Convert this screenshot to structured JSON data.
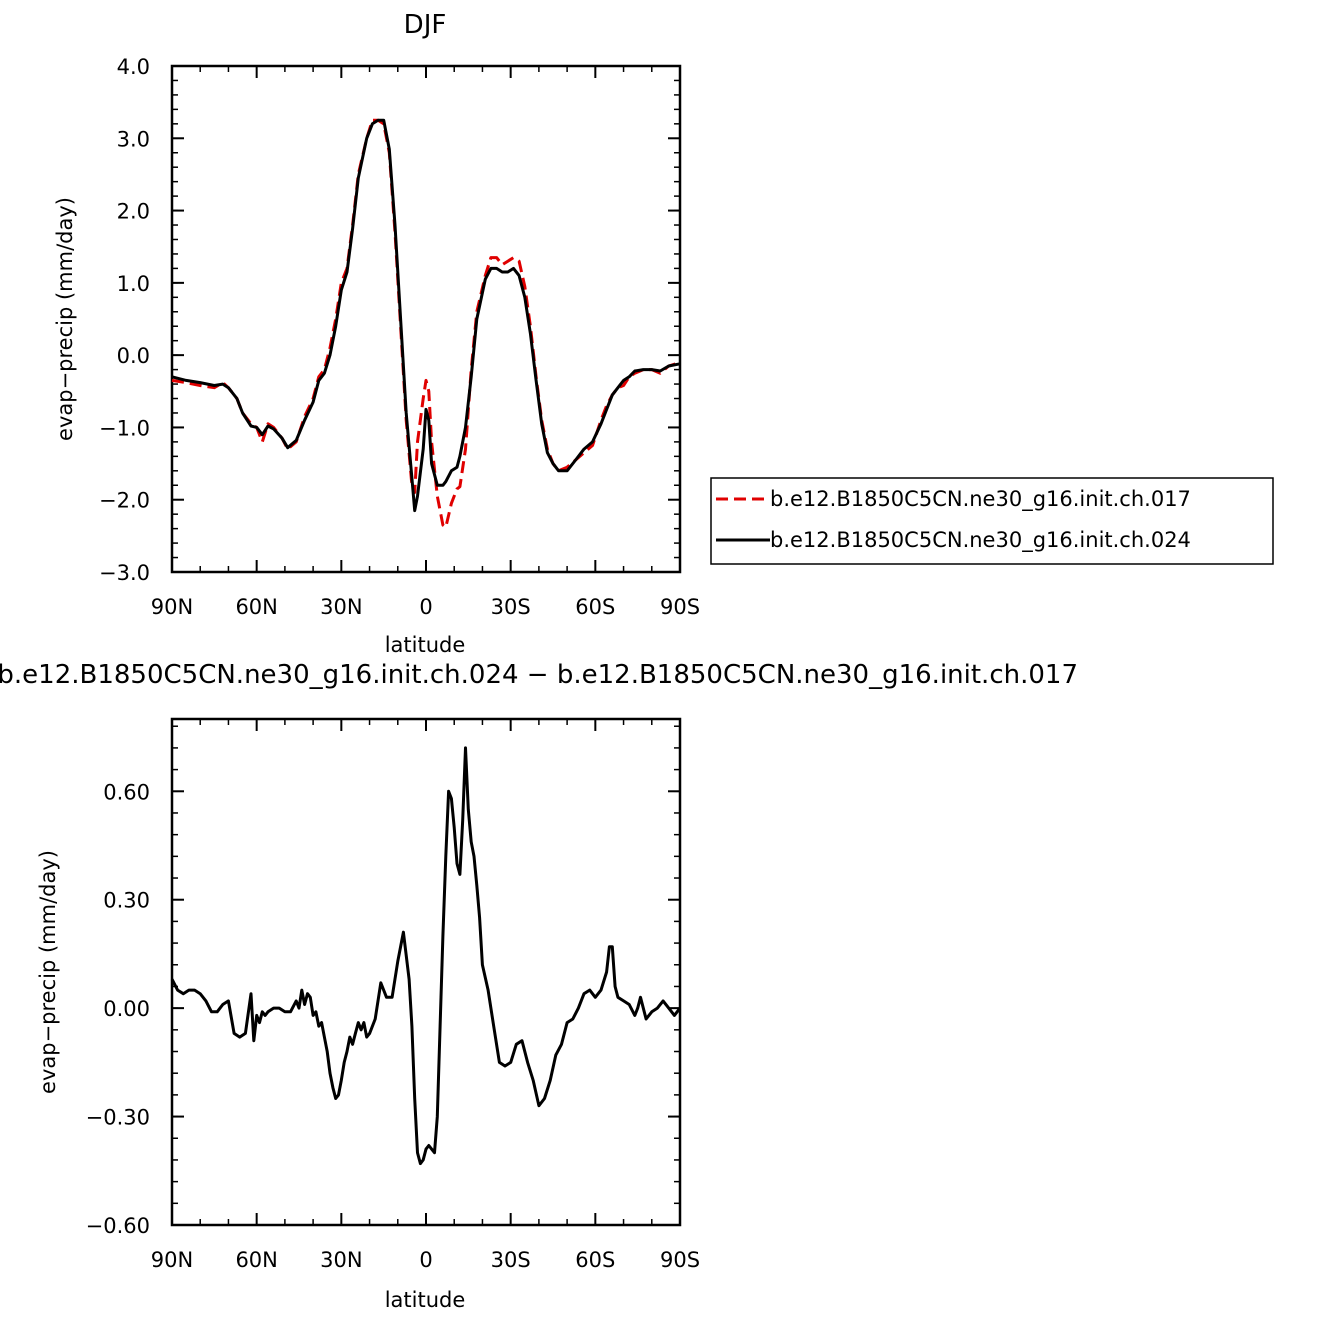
{
  "chart_data": [
    {
      "type": "line",
      "title": "DJF",
      "xlabel": "latitude",
      "ylabel": "evap−precip (mm/day)",
      "xlim": [
        90,
        -90
      ],
      "ylim": [
        -3.0,
        4.0
      ],
      "x_ticks": [
        90,
        60,
        30,
        0,
        -30,
        -60,
        -90
      ],
      "x_tick_labels": [
        "90N",
        "60N",
        "30N",
        "0",
        "30S",
        "60S",
        "90S"
      ],
      "y_ticks": [
        -3.0,
        -2.0,
        -1.0,
        0.0,
        1.0,
        2.0,
        3.0,
        4.0
      ],
      "y_tick_labels": [
        "−3.0",
        "−2.0",
        "−1.0",
        "0.0",
        "1.0",
        "2.0",
        "3.0",
        "4.0"
      ],
      "legend_position": "right",
      "series": [
        {
          "name": "b.e12.B1850C5CN.ne30_g16.init.ch.017",
          "color": "#e00000",
          "dash": true,
          "x": [
            90,
            85,
            80,
            75,
            72,
            70,
            67,
            65,
            62,
            60,
            58,
            56,
            54,
            51,
            49,
            46,
            43,
            40,
            38,
            36,
            34,
            32,
            30,
            28,
            26,
            24,
            21,
            19,
            17,
            15,
            13,
            11,
            9,
            7,
            5,
            4,
            3,
            1,
            0,
            -1,
            -2,
            -4,
            -6,
            -7,
            -9,
            -11,
            -12,
            -14,
            -16,
            -18,
            -21,
            -23,
            -25,
            -27,
            -29,
            -31,
            -33,
            -35,
            -37,
            -39,
            -41,
            -43,
            -45,
            -47,
            -50,
            -53,
            -56,
            -59,
            -62,
            -64,
            -66,
            -68,
            -70,
            -72,
            -74,
            -77,
            -80,
            -83,
            -86,
            -90
          ],
          "y": [
            -0.35,
            -0.38,
            -0.42,
            -0.45,
            -0.38,
            -0.45,
            -0.6,
            -0.8,
            -0.95,
            -1.0,
            -1.2,
            -0.95,
            -1.0,
            -1.15,
            -1.3,
            -1.2,
            -0.85,
            -0.6,
            -0.3,
            -0.2,
            0.1,
            0.5,
            1.0,
            1.2,
            1.8,
            2.5,
            3.0,
            3.25,
            3.25,
            3.2,
            2.8,
            1.7,
            0.4,
            -0.9,
            -1.8,
            -1.9,
            -1.2,
            -0.6,
            -0.35,
            -0.5,
            -1.2,
            -1.95,
            -2.35,
            -2.38,
            -2.05,
            -1.85,
            -1.82,
            -1.3,
            -0.2,
            0.6,
            1.1,
            1.35,
            1.35,
            1.25,
            1.3,
            1.35,
            1.3,
            0.95,
            0.4,
            -0.3,
            -0.9,
            -1.3,
            -1.5,
            -1.6,
            -1.55,
            -1.45,
            -1.35,
            -1.25,
            -0.9,
            -0.7,
            -0.55,
            -0.45,
            -0.42,
            -0.3,
            -0.25,
            -0.2,
            -0.2,
            -0.25,
            -0.15,
            -0.1
          ]
        },
        {
          "name": "b.e12.B1850C5CN.ne30_g16.init.ch.024",
          "color": "#000000",
          "dash": false,
          "x": [
            90,
            85,
            80,
            75,
            72,
            70,
            67,
            65,
            62,
            60,
            58,
            56,
            54,
            51,
            49,
            46,
            43,
            40,
            38,
            36,
            34,
            32,
            30,
            28,
            26,
            24,
            21,
            19,
            17,
            15,
            13,
            11,
            9,
            7,
            5,
            4,
            3,
            1,
            0,
            -1,
            -2,
            -4,
            -6,
            -7,
            -9,
            -11,
            -12,
            -14,
            -16,
            -18,
            -21,
            -23,
            -25,
            -27,
            -29,
            -31,
            -33,
            -35,
            -37,
            -39,
            -41,
            -43,
            -45,
            -47,
            -50,
            -53,
            -56,
            -59,
            -62,
            -64,
            -66,
            -68,
            -70,
            -72,
            -74,
            -77,
            -80,
            -83,
            -86,
            -90
          ],
          "y": [
            -0.3,
            -0.35,
            -0.38,
            -0.42,
            -0.4,
            -0.45,
            -0.6,
            -0.8,
            -0.98,
            -1.0,
            -1.1,
            -0.98,
            -1.02,
            -1.15,
            -1.28,
            -1.18,
            -0.9,
            -0.65,
            -0.35,
            -0.25,
            0.0,
            0.4,
            0.9,
            1.15,
            1.75,
            2.45,
            3.0,
            3.2,
            3.25,
            3.25,
            2.85,
            1.8,
            0.5,
            -0.8,
            -1.7,
            -2.15,
            -1.95,
            -1.3,
            -0.75,
            -0.9,
            -1.5,
            -1.8,
            -1.8,
            -1.75,
            -1.6,
            -1.55,
            -1.4,
            -1.0,
            -0.3,
            0.5,
            1.05,
            1.2,
            1.2,
            1.15,
            1.15,
            1.2,
            1.1,
            0.8,
            0.3,
            -0.35,
            -0.95,
            -1.35,
            -1.5,
            -1.6,
            -1.6,
            -1.45,
            -1.3,
            -1.2,
            -0.95,
            -0.75,
            -0.55,
            -0.45,
            -0.35,
            -0.3,
            -0.22,
            -0.2,
            -0.2,
            -0.22,
            -0.15,
            -0.12
          ]
        }
      ]
    },
    {
      "type": "line",
      "title": "b.e12.B1850C5CN.ne30_g16.init.ch.024 − b.e12.B1850C5CN.ne30_g16.init.ch.017",
      "xlabel": "latitude",
      "ylabel": "evap−precip (mm/day)",
      "xlim": [
        90,
        -90
      ],
      "ylim": [
        -0.6,
        0.8
      ],
      "x_ticks": [
        90,
        60,
        30,
        0,
        -30,
        -60,
        -90
      ],
      "x_tick_labels": [
        "90N",
        "60N",
        "30N",
        "0",
        "30S",
        "60S",
        "90S"
      ],
      "y_ticks": [
        -0.6,
        -0.3,
        0.0,
        0.3,
        0.6
      ],
      "y_tick_labels": [
        "−0.60",
        "−0.30",
        "0.00",
        "0.30",
        "0.60"
      ],
      "series": [
        {
          "color": "#000000",
          "dash": false,
          "x": [
            90,
            88,
            86,
            84,
            82,
            80,
            78,
            76,
            74,
            72,
            70,
            68,
            66,
            64,
            62,
            61,
            60,
            59,
            58,
            57,
            56,
            54,
            52,
            50,
            48,
            46,
            45,
            44,
            43,
            42,
            41,
            40,
            39,
            38,
            37,
            36,
            35,
            34,
            33,
            32,
            31,
            30,
            29,
            28,
            27,
            26,
            25,
            24,
            23,
            22,
            21,
            20,
            18,
            16,
            14,
            12,
            10,
            8,
            6,
            5,
            4,
            3,
            2,
            1,
            0,
            -1,
            -2,
            -3,
            -4,
            -5,
            -6,
            -7,
            -8,
            -9,
            -10,
            -11,
            -12,
            -13,
            -14,
            -15,
            -16,
            -17,
            -18,
            -19,
            -20,
            -22,
            -24,
            -26,
            -28,
            -30,
            -32,
            -34,
            -36,
            -38,
            -40,
            -42,
            -44,
            -46,
            -48,
            -50,
            -52,
            -54,
            -56,
            -58,
            -60,
            -62,
            -64,
            -65,
            -66,
            -67,
            -68,
            -70,
            -72,
            -74,
            -75,
            -76,
            -78,
            -80,
            -82,
            -84,
            -86,
            -88,
            -90
          ],
          "y": [
            0.08,
            0.05,
            0.04,
            0.05,
            0.05,
            0.04,
            0.02,
            -0.01,
            -0.01,
            0.01,
            0.02,
            -0.07,
            -0.08,
            -0.07,
            0.04,
            -0.09,
            -0.02,
            -0.04,
            -0.01,
            -0.02,
            -0.01,
            0.0,
            0.0,
            -0.01,
            -0.01,
            0.02,
            0.0,
            0.05,
            0.01,
            0.04,
            0.03,
            -0.02,
            -0.01,
            -0.05,
            -0.04,
            -0.08,
            -0.12,
            -0.18,
            -0.22,
            -0.25,
            -0.24,
            -0.2,
            -0.15,
            -0.12,
            -0.08,
            -0.1,
            -0.07,
            -0.04,
            -0.06,
            -0.04,
            -0.08,
            -0.07,
            -0.03,
            0.07,
            0.03,
            0.03,
            0.13,
            0.21,
            0.08,
            -0.05,
            -0.25,
            -0.4,
            -0.43,
            -0.42,
            -0.39,
            -0.38,
            -0.39,
            -0.4,
            -0.3,
            -0.05,
            0.2,
            0.42,
            0.6,
            0.58,
            0.5,
            0.4,
            0.37,
            0.52,
            0.72,
            0.55,
            0.46,
            0.42,
            0.34,
            0.25,
            0.12,
            0.05,
            -0.05,
            -0.15,
            -0.16,
            -0.15,
            -0.1,
            -0.09,
            -0.15,
            -0.2,
            -0.27,
            -0.25,
            -0.2,
            -0.13,
            -0.1,
            -0.04,
            -0.03,
            0.0,
            0.04,
            0.05,
            0.03,
            0.05,
            0.1,
            0.17,
            0.17,
            0.06,
            0.03,
            0.02,
            0.01,
            -0.02,
            0.0,
            0.03,
            -0.03,
            -0.01,
            0.0,
            0.02,
            0.0,
            -0.02,
            0.0
          ]
        }
      ]
    }
  ]
}
